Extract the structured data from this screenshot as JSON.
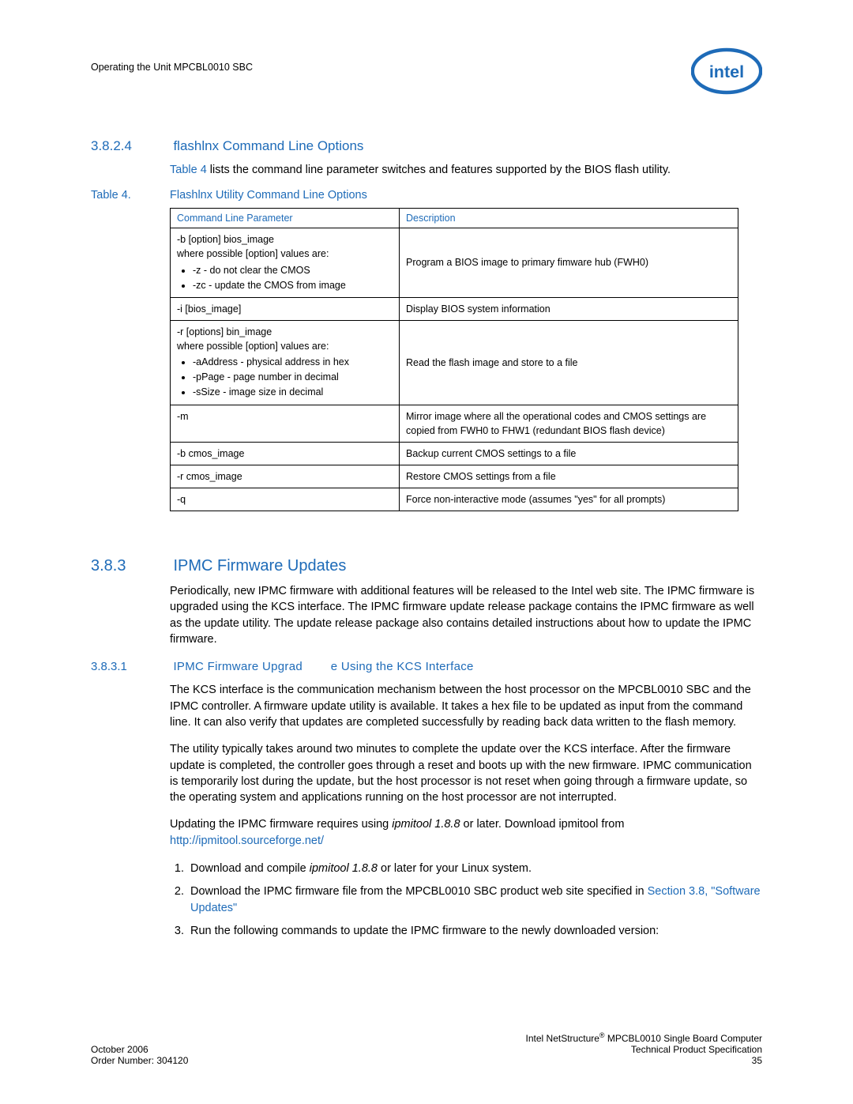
{
  "header": {
    "running_title": "Operating the Unit MPCBL0010 SBC",
    "logo_label": "intel"
  },
  "section1": {
    "number": "3.8.2.4",
    "title": "flashlnx Command Line Options",
    "intro_pre": "Table 4",
    "intro_rest": " lists the command line parameter switches and features supported by the BIOS flash utility."
  },
  "table": {
    "label": "Table 4.",
    "title": "Flashlnx Utility Command Line Options",
    "col1": "Command Line Parameter",
    "col2": "Description",
    "rows": [
      {
        "param_line1": "-b [option] bios_image",
        "param_line2": "where possible [option] values are:",
        "bullets": [
          "-z - do not clear the CMOS",
          "-zc - update the CMOS from image"
        ],
        "desc": "Program a BIOS image to primary fimware hub (FWH0)"
      },
      {
        "param_line1": "-i [bios_image]",
        "desc": "Display BIOS system information"
      },
      {
        "param_line1": "-r [options] bin_image",
        "param_line2": "where possible [option] values are:",
        "bullets": [
          "-aAddress - physical address in hex",
          "-pPage - page number in decimal",
          "-sSize - image size in decimal"
        ],
        "desc": "Read the flash image and store to a file"
      },
      {
        "param_line1": "-m",
        "desc": "Mirror image where all the operational codes and CMOS settings are copied from FWH0 to FHW1 (redundant BIOS flash device)"
      },
      {
        "param_line1": "-b cmos_image",
        "desc": "Backup current CMOS settings to a file"
      },
      {
        "param_line1": "-r cmos_image",
        "desc": "Restore CMOS settings from a file"
      },
      {
        "param_line1": "-q",
        "desc": "Force non-interactive mode (assumes \"yes\" for all prompts)"
      }
    ]
  },
  "section2": {
    "number": "3.8.3",
    "title": "IPMC Firmware Updates",
    "para": "Periodically, new IPMC firmware with additional features will be released to the Intel web site. The IPMC firmware is upgraded using the KCS interface. The IPMC firmware update release package contains the IPMC firmware as well as the update utility. The update release package also contains detailed instructions about how to update the IPMC firmware."
  },
  "section3": {
    "number": "3.8.3.1",
    "title_a": "IPMC Firmware Upgrad",
    "title_b": "e Using the KCS Interface",
    "para1": "The KCS interface is the communication mechanism between the host processor on the MPCBL0010 SBC and the IPMC controller. A firmware update utility is available. It takes a hex file to be updated as input from the command line. It can also verify that updates are completed successfully by reading back data written to the flash memory.",
    "para2": "The utility typically takes around two minutes to complete the update over the KCS interface. After the firmware update is completed, the controller goes through a reset and boots up with the new firmware. IPMC communication is temporarily lost during the update, but the host processor is not reset when going through a firmware update, so the operating system and applications running on the host processor are not interrupted.",
    "para3_a": "Updating the IPMC firmware requires using ",
    "para3_tool": "ipmitool 1.8.8",
    "para3_b": " or later. Download ipmitool from ",
    "para3_link": "http://ipmitool.sourceforge.net/",
    "step1_a": "Download and compile ",
    "step1_tool": "ipmitool 1.8.8",
    "step1_b": " or later for your Linux system.",
    "step2_a": "Download the IPMC firmware file from the MPCBL0010 SBC product web site specified in ",
    "step2_link": "Section 3.8, \"Software Updates\"",
    "step3": "Run the following commands to update the IPMC firmware to the newly downloaded version:"
  },
  "footer": {
    "left1": "October 2006",
    "left2": "Order Number: 304120",
    "right1a": "Intel NetStructure",
    "right1b": " MPCBL0010 Single Board Computer",
    "right2": "Technical Product Specification",
    "right3": "35"
  },
  "colors": {
    "link": "#1e6bb8",
    "text": "#000000",
    "bg": "#ffffff"
  }
}
